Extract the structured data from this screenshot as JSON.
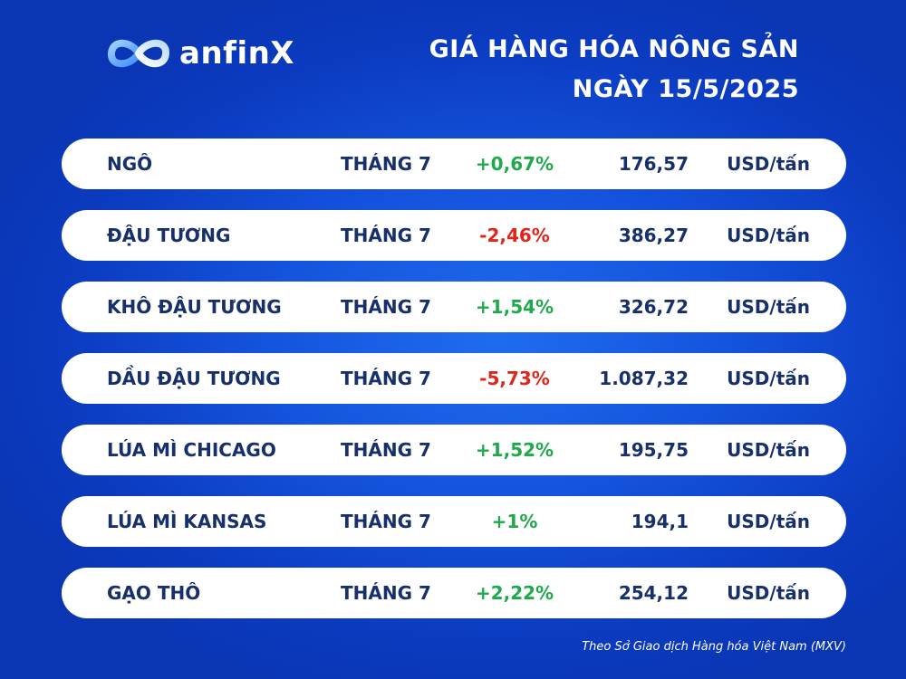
{
  "brand": {
    "name": "anfinX",
    "icon": "infinity-logo-icon"
  },
  "title": {
    "line1": "GIÁ HÀNG HÓA NÔNG SẢN",
    "line2": "NGÀY 15/5/2025"
  },
  "colors": {
    "background": "#1452dc",
    "up": "#1fa94a",
    "down": "#e0251b",
    "text": "#17306b"
  },
  "rows": [
    {
      "name": "NGÔ",
      "month": "THÁNG 7",
      "change": "+0,67%",
      "direction": "up",
      "price": "176,57",
      "unit": "USD/tấn"
    },
    {
      "name": "ĐẬU TƯƠNG",
      "month": "THÁNG 7",
      "change": "-2,46%",
      "direction": "down",
      "price": "386,27",
      "unit": "USD/tấn"
    },
    {
      "name": "KHÔ ĐẬU TƯƠNG",
      "month": "THÁNG 7",
      "change": "+1,54%",
      "direction": "up",
      "price": "326,72",
      "unit": "USD/tấn"
    },
    {
      "name": "DẦU ĐẬU TƯƠNG",
      "month": "THÁNG 7",
      "change": "-5,73%",
      "direction": "down",
      "price": "1.087,32",
      "unit": "USD/tấn"
    },
    {
      "name": "LÚA MÌ CHICAGO",
      "month": "THÁNG 7",
      "change": "+1,52%",
      "direction": "up",
      "price": "195,75",
      "unit": "USD/tấn"
    },
    {
      "name": "LÚA MÌ KANSAS",
      "month": "THÁNG 7",
      "change": "+1%",
      "direction": "up",
      "price": "194,1",
      "unit": "USD/tấn"
    },
    {
      "name": "GẠO THÔ",
      "month": "THÁNG 7",
      "change": "+2,22%",
      "direction": "up",
      "price": "254,12",
      "unit": "USD/tấn"
    }
  ],
  "source": "Theo Sở Giao dịch Hàng hóa Việt Nam (MXV)"
}
